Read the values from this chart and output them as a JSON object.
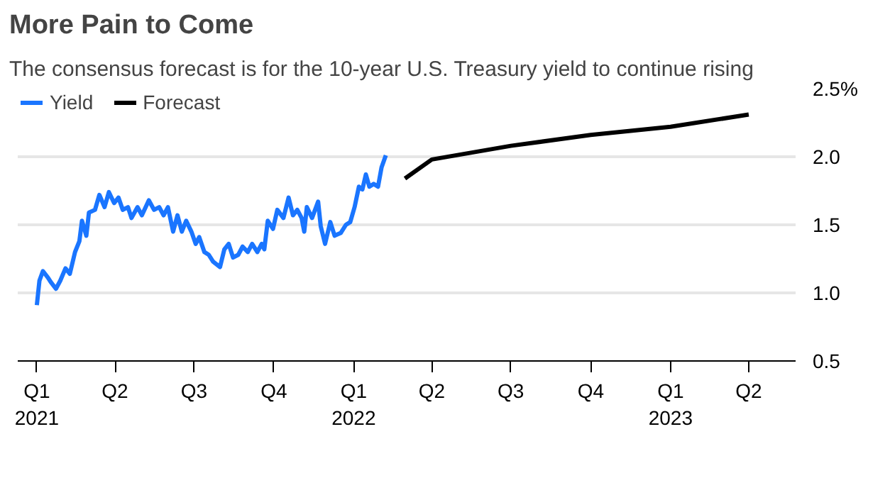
{
  "chart_data": {
    "type": "line",
    "title": "More Pain to Come",
    "subtitle": "The consensus forecast is for the 10-year U.S. Treasury yield to continue rising",
    "series": [
      {
        "name": "Yield",
        "color": "#1a75ff",
        "x": [
          "2021-01-01",
          "2021-01-04",
          "2021-01-08",
          "2021-01-14",
          "2021-01-17",
          "2021-01-23",
          "2021-01-28",
          "2021-02-03",
          "2021-02-08",
          "2021-02-14",
          "2021-02-19",
          "2021-02-22",
          "2021-02-27",
          "2021-03-02",
          "2021-03-09",
          "2021-03-14",
          "2021-03-20",
          "2021-03-25",
          "2021-03-31",
          "2021-04-05",
          "2021-04-10",
          "2021-04-16",
          "2021-04-20",
          "2021-04-27",
          "2021-05-02",
          "2021-05-10",
          "2021-05-16",
          "2021-05-22",
          "2021-05-27",
          "2021-06-01",
          "2021-06-07",
          "2021-06-12",
          "2021-06-17",
          "2021-06-22",
          "2021-06-28",
          "2021-07-03",
          "2021-07-07",
          "2021-07-13",
          "2021-07-18",
          "2021-07-23",
          "2021-07-31",
          "2021-08-05",
          "2021-08-10",
          "2021-08-15",
          "2021-08-21",
          "2021-08-26",
          "2021-09-01",
          "2021-09-06",
          "2021-09-12",
          "2021-09-17",
          "2021-09-20",
          "2021-09-24",
          "2021-09-30",
          "2021-10-05",
          "2021-10-12",
          "2021-10-18",
          "2021-10-23",
          "2021-10-28",
          "2021-11-02",
          "2021-11-05",
          "2021-11-08",
          "2021-11-14",
          "2021-11-21",
          "2021-11-24",
          "2021-11-29",
          "2021-12-05",
          "2021-12-10",
          "2021-12-17",
          "2021-12-23",
          "2021-12-28",
          "2022-01-02",
          "2022-01-07",
          "2022-01-11",
          "2022-01-15",
          "2022-01-19",
          "2022-01-24",
          "2022-01-29",
          "2022-02-02",
          "2022-02-07"
        ],
        "values": [
          0.91,
          1.09,
          1.16,
          1.11,
          1.08,
          1.03,
          1.09,
          1.18,
          1.14,
          1.3,
          1.38,
          1.53,
          1.42,
          1.59,
          1.61,
          1.72,
          1.63,
          1.74,
          1.66,
          1.7,
          1.61,
          1.63,
          1.55,
          1.63,
          1.57,
          1.68,
          1.61,
          1.63,
          1.57,
          1.63,
          1.45,
          1.57,
          1.45,
          1.53,
          1.45,
          1.36,
          1.41,
          1.3,
          1.28,
          1.23,
          1.19,
          1.32,
          1.36,
          1.26,
          1.28,
          1.34,
          1.3,
          1.36,
          1.3,
          1.36,
          1.32,
          1.53,
          1.47,
          1.61,
          1.55,
          1.7,
          1.57,
          1.61,
          1.55,
          1.45,
          1.63,
          1.55,
          1.67,
          1.49,
          1.36,
          1.52,
          1.42,
          1.44,
          1.5,
          1.52,
          1.63,
          1.78,
          1.76,
          1.87,
          1.78,
          1.8,
          1.78,
          1.92,
          2.01
        ]
      },
      {
        "name": "Forecast",
        "color": "#000000",
        "x": [
          "2022-03-01",
          "2022-04-01",
          "2022-07-01",
          "2022-10-01",
          "2023-01-01",
          "2023-04-01"
        ],
        "values": [
          1.84,
          1.98,
          2.08,
          2.16,
          2.22,
          2.31
        ]
      }
    ],
    "xlim": [
      "2020-12-10",
      "2023-05-25"
    ],
    "xticks": [
      {
        "value": "2021-01-01",
        "label": "Q1\n2021"
      },
      {
        "value": "2021-04-01",
        "label": "Q2"
      },
      {
        "value": "2021-07-01",
        "label": "Q3"
      },
      {
        "value": "2021-10-01",
        "label": "Q4"
      },
      {
        "value": "2022-01-01",
        "label": "Q1\n2022"
      },
      {
        "value": "2022-04-01",
        "label": "Q2"
      },
      {
        "value": "2022-07-01",
        "label": "Q3"
      },
      {
        "value": "2022-10-01",
        "label": "Q4"
      },
      {
        "value": "2023-01-01",
        "label": "Q1\n2023"
      },
      {
        "value": "2023-04-01",
        "label": "Q2"
      }
    ],
    "ylim": [
      0.5,
      2.5
    ],
    "yticks": [
      {
        "value": 0.5,
        "label": "0.5"
      },
      {
        "value": 1,
        "label": "1.0"
      },
      {
        "value": 1.5,
        "label": "1.5"
      },
      {
        "value": 2,
        "label": "2.0"
      },
      {
        "value": 2.5,
        "label": "2.5%"
      }
    ],
    "grid": "y",
    "legend": "top left",
    "marker": "none",
    "line_style": "solid"
  }
}
